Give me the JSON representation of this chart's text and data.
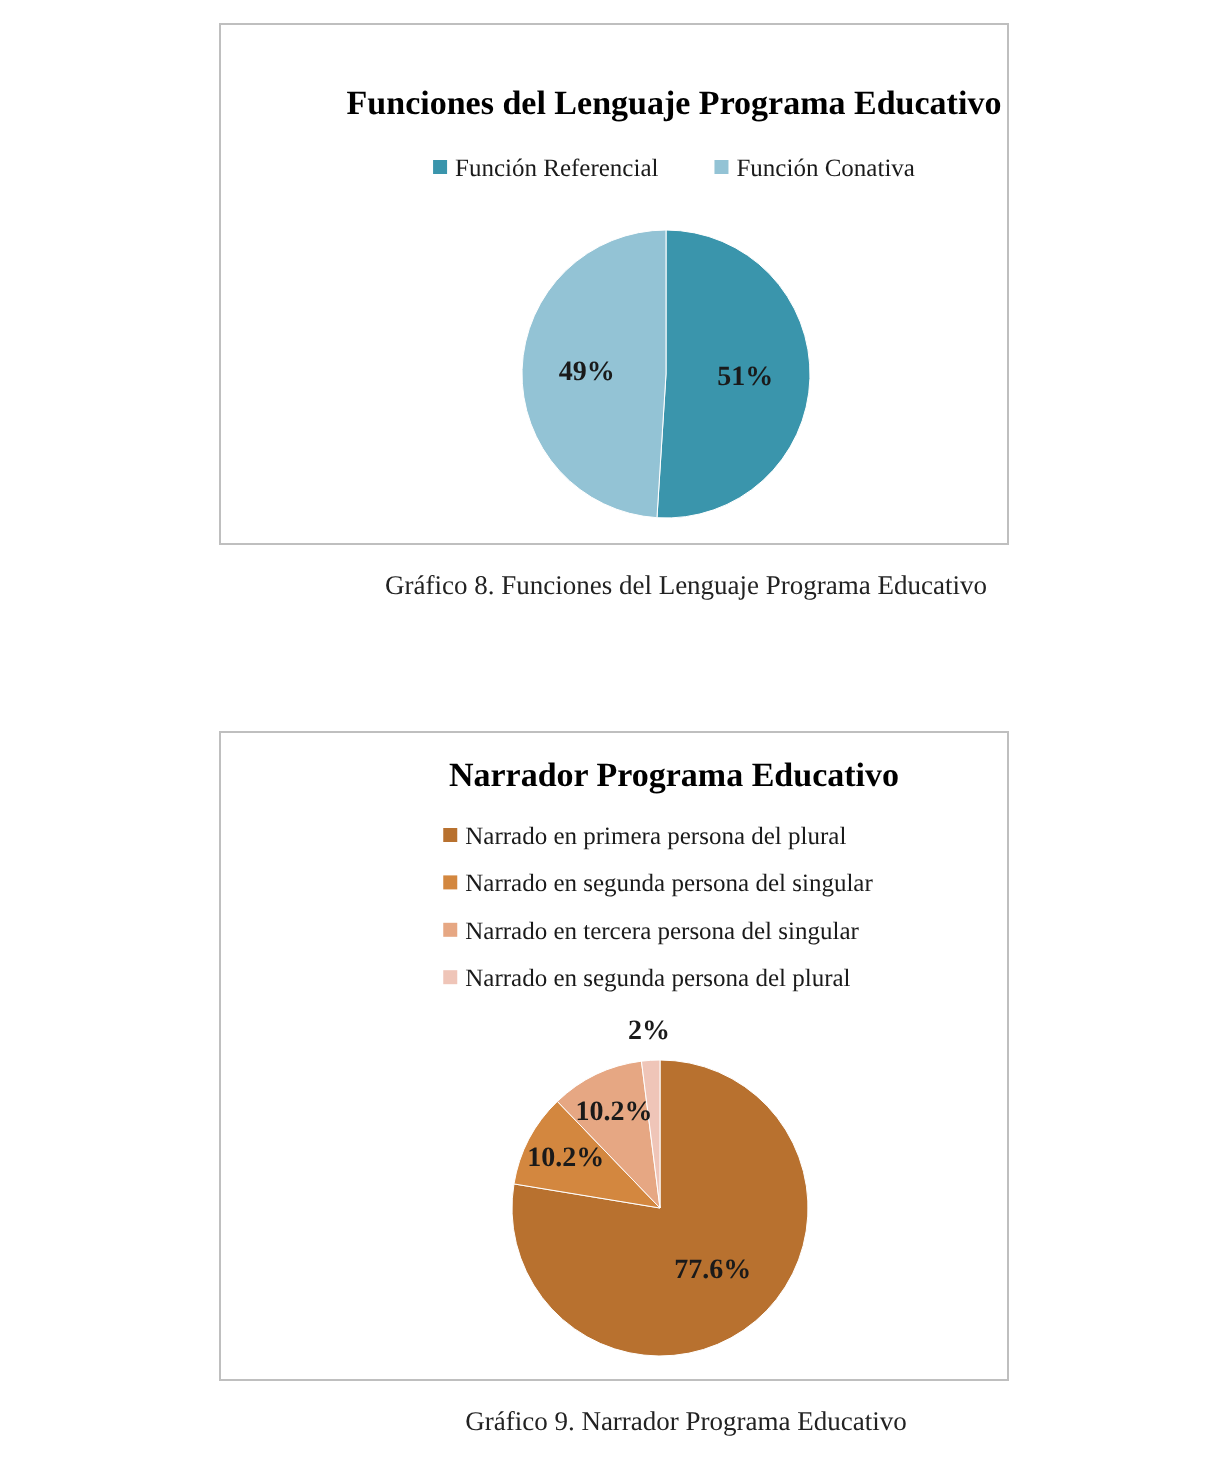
{
  "chart_data": [
    {
      "type": "pie",
      "title": "Funciones del Lenguaje Programa Educativo",
      "categories": [
        "Función Referencial",
        "Función Conativa"
      ],
      "values": [
        51,
        49
      ],
      "value_labels": [
        "51%",
        "49%"
      ],
      "colors": [
        "#3a95ac",
        "#93c3d5"
      ],
      "legend": "top",
      "annotations": [
        "Gráfico 8. Funciones del Lenguaje Programa Educativo"
      ]
    },
    {
      "type": "pie",
      "title": "Narrador Programa Educativo",
      "categories": [
        "Narrado en primera persona del plural",
        "Narrado en segunda persona del singular",
        "Narrado en tercera persona del singular",
        "Narrado en segunda persona del plural"
      ],
      "values": [
        77.6,
        10.2,
        10.2,
        2
      ],
      "value_labels": [
        "77.6%",
        "10.2%",
        "10.2%",
        "2%"
      ],
      "colors": [
        "#b8712f",
        "#d3873f",
        "#e6a783",
        "#efc5b8"
      ],
      "legend": "top",
      "annotations": [
        "Gráfico 9. Narrador Programa Educativo"
      ]
    }
  ]
}
